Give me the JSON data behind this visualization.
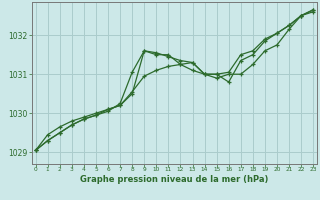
{
  "title": "Graphe pression niveau de la mer (hPa)",
  "bg_color": "#cce8e8",
  "grid_color": "#aacccc",
  "line_color": "#2d6b2d",
  "marker_color": "#2d6b2d",
  "xlim": [
    -0.3,
    23.3
  ],
  "ylim": [
    1028.7,
    1032.85
  ],
  "yticks": [
    1029,
    1030,
    1031,
    1032
  ],
  "xticks": [
    0,
    1,
    2,
    3,
    4,
    5,
    6,
    7,
    8,
    9,
    10,
    11,
    12,
    13,
    14,
    15,
    16,
    17,
    18,
    19,
    20,
    21,
    22,
    23
  ],
  "line1_x": [
    0,
    1,
    2,
    3,
    4,
    5,
    6,
    7,
    8,
    9,
    10,
    11,
    12,
    13,
    14,
    15,
    16,
    17,
    18,
    19,
    20,
    21,
    22,
    23
  ],
  "line1_y": [
    1029.05,
    1029.45,
    1029.65,
    1029.8,
    1029.9,
    1030.0,
    1030.1,
    1030.2,
    1030.55,
    1030.95,
    1031.1,
    1031.2,
    1031.25,
    1031.3,
    1031.0,
    1031.0,
    1031.05,
    1031.5,
    1031.6,
    1031.9,
    1032.05,
    1032.25,
    1032.5,
    1032.6
  ],
  "line2_x": [
    0,
    1,
    2,
    3,
    4,
    5,
    6,
    7,
    8,
    9,
    10,
    11,
    12,
    13,
    14,
    15,
    16,
    17,
    18,
    19,
    20,
    21,
    22,
    23
  ],
  "line2_y": [
    1029.05,
    1029.3,
    1029.5,
    1029.7,
    1029.85,
    1029.95,
    1030.05,
    1030.25,
    1031.05,
    1031.6,
    1031.55,
    1031.45,
    1031.35,
    1031.3,
    1031.0,
    1031.0,
    1030.8,
    1031.35,
    1031.5,
    1031.85,
    1032.05,
    1032.25,
    1032.5,
    1032.65
  ],
  "line3_x": [
    0,
    1,
    2,
    3,
    4,
    5,
    6,
    7,
    8,
    9,
    10,
    11,
    12,
    13,
    14,
    15,
    16,
    17,
    18,
    19,
    20,
    21,
    22,
    23
  ],
  "line3_y": [
    1029.05,
    1029.3,
    1029.5,
    1029.7,
    1029.85,
    1029.95,
    1030.1,
    1030.2,
    1030.5,
    1031.6,
    1031.5,
    1031.5,
    1031.25,
    1031.1,
    1031.0,
    1030.9,
    1031.0,
    1031.0,
    1031.25,
    1031.6,
    1031.75,
    1032.15,
    1032.5,
    1032.65
  ]
}
